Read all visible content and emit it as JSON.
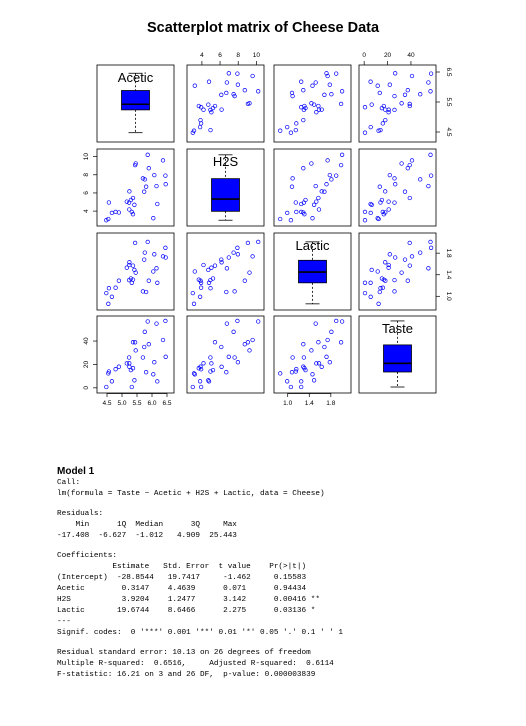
{
  "chart_data": {
    "type": "scatter",
    "title": "Scatterplot matrix of Cheese Data",
    "variables": [
      "Acetic",
      "H2S",
      "Lactic",
      "Taste"
    ],
    "point_color": "#0000ff",
    "box_color": "#0000ff",
    "axis_ranges": {
      "Acetic": [
        4.3,
        6.6
      ],
      "H2S": [
        2.8,
        10.4
      ],
      "Lactic": [
        0.82,
        2.1
      ],
      "Taste": [
        -1,
        58
      ]
    },
    "ticks": {
      "Acetic": {
        "side": "bottom",
        "values": [
          4.5,
          5.0,
          5.5,
          6.0,
          6.5
        ],
        "labels": [
          "4.5",
          "5.0",
          "5.5",
          "6.0",
          "6.5"
        ]
      },
      "H2S": {
        "side": "top",
        "values": [
          4,
          6,
          8,
          10
        ],
        "labels": [
          "4",
          "6",
          "8",
          "10"
        ]
      },
      "Lactic": {
        "side": "bottom",
        "values": [
          1.0,
          1.4,
          1.8
        ],
        "labels": [
          "1.0",
          "1.4",
          "1.8"
        ]
      },
      "Taste": {
        "side": "top",
        "values": [
          0,
          20,
          40
        ],
        "labels": [
          "0",
          "20",
          "40"
        ]
      },
      "H2S_left": {
        "side": "left",
        "values": [
          4,
          6,
          8,
          10
        ],
        "labels": [
          "4",
          "6",
          "8",
          "10"
        ]
      },
      "Taste_left": {
        "side": "left",
        "values": [
          0,
          20,
          40
        ],
        "labels": [
          "0",
          "20",
          "40"
        ]
      },
      "Acetic_right": {
        "side": "right",
        "values": [
          4.5,
          5.5,
          6.5
        ],
        "labels": [
          "4.5",
          "5.5",
          "6.5"
        ]
      },
      "Lactic_right": {
        "side": "right",
        "values": [
          1.0,
          1.4,
          1.8
        ],
        "labels": [
          "1.0",
          "1.4",
          "1.8"
        ]
      }
    },
    "observations": [
      {
        "Acetic": 4.543,
        "H2S": 3.135,
        "Lactic": 0.86,
        "Taste": 12.3
      },
      {
        "Acetic": 5.159,
        "H2S": 5.043,
        "Lactic": 1.53,
        "Taste": 20.9
      },
      {
        "Acetic": 5.366,
        "H2S": 5.438,
        "Lactic": 1.57,
        "Taste": 39.0
      },
      {
        "Acetic": 5.759,
        "H2S": 7.496,
        "Lactic": 1.81,
        "Taste": 47.9
      },
      {
        "Acetic": 4.663,
        "H2S": 3.807,
        "Lactic": 0.99,
        "Taste": 5.6
      },
      {
        "Acetic": 5.697,
        "H2S": 7.601,
        "Lactic": 1.09,
        "Taste": 25.9
      },
      {
        "Acetic": 5.892,
        "H2S": 8.726,
        "Lactic": 1.29,
        "Taste": 37.3
      },
      {
        "Acetic": 6.078,
        "H2S": 7.966,
        "Lactic": 1.78,
        "Taste": 21.9
      },
      {
        "Acetic": 4.898,
        "H2S": 3.85,
        "Lactic": 1.29,
        "Taste": 18.1
      },
      {
        "Acetic": 5.242,
        "H2S": 4.174,
        "Lactic": 1.58,
        "Taste": 21.0
      },
      {
        "Acetic": 5.74,
        "H2S": 6.142,
        "Lactic": 1.68,
        "Taste": 34.9
      },
      {
        "Acetic": 6.446,
        "H2S": 7.908,
        "Lactic": 1.9,
        "Taste": 57.2
      },
      {
        "Acetic": 4.477,
        "H2S": 2.996,
        "Lactic": 1.06,
        "Taste": 0.7
      },
      {
        "Acetic": 5.236,
        "H2S": 4.942,
        "Lactic": 1.3,
        "Taste": 25.9
      },
      {
        "Acetic": 6.151,
        "H2S": 6.752,
        "Lactic": 1.52,
        "Taste": 54.9
      },
      {
        "Acetic": 6.365,
        "H2S": 9.588,
        "Lactic": 1.74,
        "Taste": 40.9
      },
      {
        "Acetic": 4.787,
        "H2S": 3.912,
        "Lactic": 1.16,
        "Taste": 15.9
      },
      {
        "Acetic": 5.412,
        "H2S": 4.7,
        "Lactic": 1.49,
        "Taste": 6.4
      },
      {
        "Acetic": 5.247,
        "H2S": 6.174,
        "Lactic": 1.63,
        "Taste": 18.0
      },
      {
        "Acetic": 5.438,
        "H2S": 9.064,
        "Lactic": 1.99,
        "Taste": 38.9
      },
      {
        "Acetic": 4.564,
        "H2S": 4.949,
        "Lactic": 1.15,
        "Taste": 14.0
      },
      {
        "Acetic": 5.298,
        "H2S": 5.22,
        "Lactic": 1.33,
        "Taste": 15.2
      },
      {
        "Acetic": 5.455,
        "H2S": 9.242,
        "Lactic": 1.44,
        "Taste": 32.0
      },
      {
        "Acetic": 5.855,
        "H2S": 10.199,
        "Lactic": 2.01,
        "Taste": 56.7
      },
      {
        "Acetic": 5.366,
        "H2S": 3.664,
        "Lactic": 1.31,
        "Taste": 16.8
      },
      {
        "Acetic": 6.043,
        "H2S": 3.219,
        "Lactic": 1.46,
        "Taste": 11.6
      },
      {
        "Acetic": 6.458,
        "H2S": 6.962,
        "Lactic": 1.72,
        "Taste": 26.5
      },
      {
        "Acetic": 5.328,
        "H2S": 3.912,
        "Lactic": 1.25,
        "Taste": 0.7
      },
      {
        "Acetic": 5.802,
        "H2S": 6.685,
        "Lactic": 1.08,
        "Taste": 13.4
      },
      {
        "Acetic": 6.176,
        "H2S": 4.787,
        "Lactic": 1.25,
        "Taste": 5.5
      }
    ]
  },
  "model_output": {
    "title": "Model 1",
    "lines": [
      "Call:",
      "lm(formula = Taste ~ Acetic + H2S + Lactic, data = Cheese)",
      "",
      "Residuals:",
      "    Min      1Q  Median      3Q     Max",
      "-17.408  -6.627  -1.012   4.909  25.443",
      "",
      "Coefficients:",
      "            Estimate   Std. Error  t value    Pr(>|t|)",
      "(Intercept)  -28.8544   19.7417     -1.462     0.15583",
      "Acetic        0.3147    4.4639      0.071      0.94434",
      "H2S           3.9204    1.2477      3.142      0.00416 **",
      "Lactic       19.6744    8.6466      2.275      0.03136 *",
      "---",
      "Signif. codes:  0 '***' 0.001 '**' 0.01 '*' 0.05 '.' 0.1 ' ' 1",
      "",
      "Residual standard error: 10.13 on 26 degrees of freedom",
      "Multiple R-squared:  0.6516,     Adjusted R-squared:  0.6114",
      "F-statistic: 16.21 on 3 and 26 DF,  p-value: 0.000003839"
    ]
  }
}
